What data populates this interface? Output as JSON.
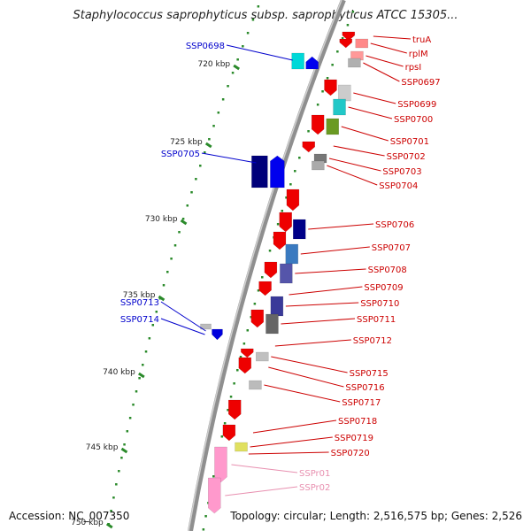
{
  "title": "Staphylococcus saprophyticus subsp. saprophyticus ATCC 15305...",
  "footer": {
    "accession": "Accession: NC_007350",
    "summary": "Topology: circular; Length: 2,516,575 bp; Genes: 2,526"
  },
  "colors": {
    "backbone": "#9e9e9e",
    "tick": "#2a8a2a",
    "left_label": "#0000cc",
    "right_label": "#cc0000",
    "rna_label": "#e890b0"
  },
  "scale": {
    "unit": "kbp",
    "ticks": [
      {
        "label": "720 kbp"
      },
      {
        "label": "725 kbp"
      },
      {
        "label": "730 kbp"
      },
      {
        "label": "735 kbp"
      },
      {
        "label": "740 kbp"
      },
      {
        "label": "745 kbp"
      },
      {
        "label": "750 kbp"
      }
    ]
  },
  "genes_left": [
    {
      "name": "SSP0698",
      "color": "#00d8d8",
      "strand": "+"
    },
    {
      "name": "SSP0705",
      "color": "#00007a",
      "strand": "+"
    },
    {
      "name": "SSP0713",
      "color": "#bbbbbb",
      "strand": "-"
    },
    {
      "name": "SSP0714",
      "color": "#0000dd",
      "strand": "-"
    }
  ],
  "genes_right": [
    {
      "name": "truA",
      "color": "#dd0000"
    },
    {
      "name": "rplM",
      "color": "#ff8888"
    },
    {
      "name": "rpsI",
      "color": "#ff9999"
    },
    {
      "name": "SSP0697",
      "color": "#b0b0b0"
    },
    {
      "name": "SSP0699",
      "color": "#cccccc"
    },
    {
      "name": "SSP0700",
      "color": "#22c8c8"
    },
    {
      "name": "SSP0701",
      "color": "#6a9a22"
    },
    {
      "name": "SSP0702",
      "color": "#dd0000"
    },
    {
      "name": "SSP0703",
      "color": "#777777"
    },
    {
      "name": "SSP0704",
      "color": "#aaaaaa"
    },
    {
      "name": "SSP0706",
      "color": "#000088"
    },
    {
      "name": "SSP0707",
      "color": "#3a7ac0"
    },
    {
      "name": "SSP0708",
      "color": "#5555aa"
    },
    {
      "name": "SSP0709",
      "color": "#ff3333"
    },
    {
      "name": "SSP0710",
      "color": "#3a3a99"
    },
    {
      "name": "SSP0711",
      "color": "#666666"
    },
    {
      "name": "SSP0712",
      "color": "#ee0000"
    },
    {
      "name": "SSP0715",
      "color": "#c0c0c0"
    },
    {
      "name": "SSP0716",
      "color": "#20c8c8"
    },
    {
      "name": "SSP0717",
      "color": "#bbbbbb"
    },
    {
      "name": "SSP0718",
      "color": "#ee0000"
    },
    {
      "name": "SSP0719",
      "color": "#e0e060"
    },
    {
      "name": "SSP0720",
      "color": "#ee0000"
    }
  ],
  "rna_right": [
    {
      "name": "SSPr01",
      "color": "#ff99cc"
    },
    {
      "name": "SSPr02",
      "color": "#ff99cc"
    }
  ]
}
